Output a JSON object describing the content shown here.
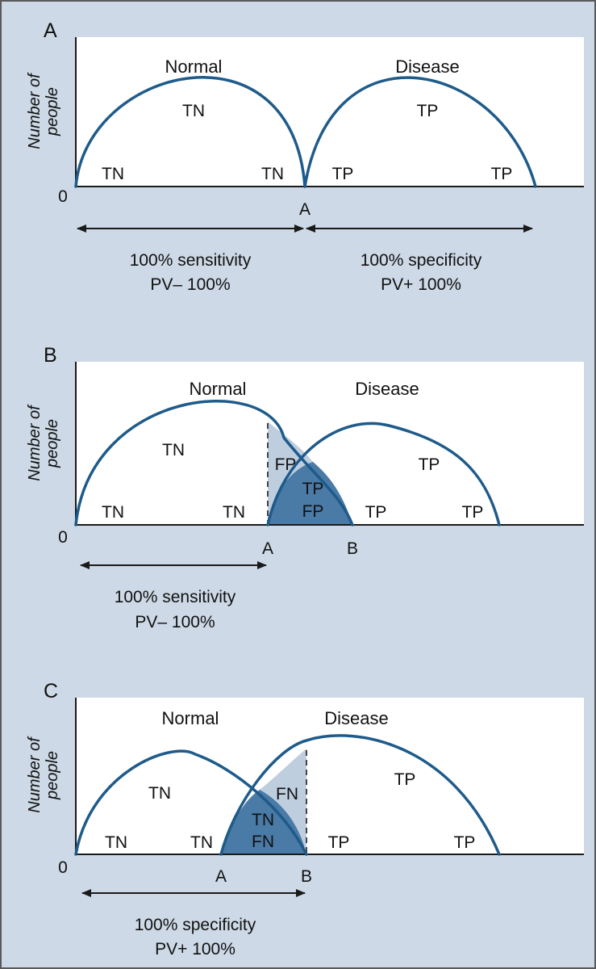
{
  "y_axis_label": [
    "Number of",
    "people"
  ],
  "origin_label": "0",
  "panels": [
    {
      "letter": "A",
      "normal_label": "Normal",
      "disease_label": "Disease",
      "cells": {
        "tn_center": "TN",
        "tn_left": "TN",
        "tn_right": "TN",
        "tp_center": "TP",
        "tp_left": "TP",
        "tp_right": "TP"
      },
      "ticks": [
        "A"
      ],
      "metric_left": [
        "100% sensitivity",
        "PV– 100%"
      ],
      "metric_right": [
        "100% specificity",
        "PV+ 100%"
      ]
    },
    {
      "letter": "B",
      "normal_label": "Normal",
      "disease_label": "Disease",
      "cells": {
        "tn_center": "TN",
        "tn_left": "TN",
        "tn_right": "TN",
        "fp": "FP",
        "overlap_top": "TP",
        "overlap_bottom": "FP",
        "tp_center": "TP",
        "tp_left": "TP",
        "tp_right": "TP"
      },
      "ticks": [
        "A",
        "B"
      ],
      "metric_left": [
        "100% sensitivity",
        "PV– 100%"
      ]
    },
    {
      "letter": "C",
      "normal_label": "Normal",
      "disease_label": "Disease",
      "cells": {
        "tn_center": "TN",
        "tn_left": "TN",
        "tn_right": "TN",
        "fn": "FN",
        "overlap_top": "TN",
        "overlap_bottom": "FN",
        "tp_center": "TP",
        "tp_left": "TP",
        "tp_right": "TP"
      },
      "ticks": [
        "A",
        "B"
      ],
      "metric_left": [
        "100% specificity",
        "PV+ 100%"
      ]
    }
  ],
  "colors": {
    "curve": "#1e5b8a",
    "overlap_dark": "#4a7aa6",
    "overlap_light": "#bfcedf",
    "background": "#cdd9e6"
  }
}
